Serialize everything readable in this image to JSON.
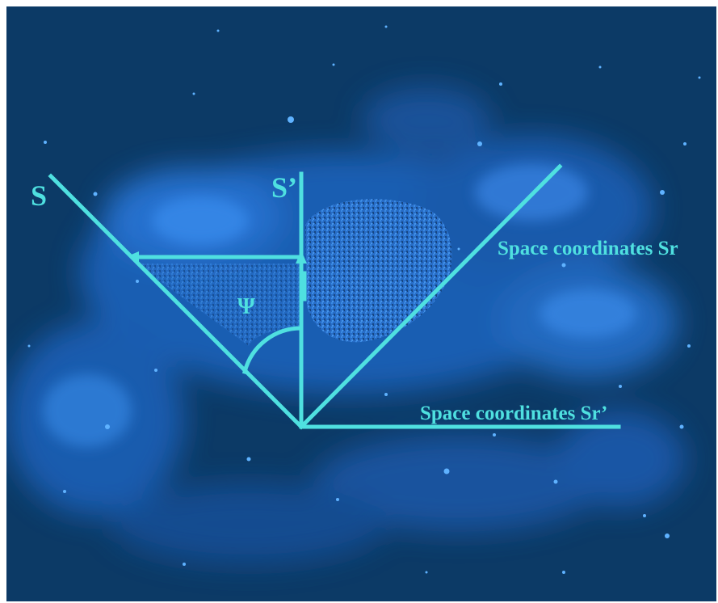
{
  "labels": {
    "axis_s": "S",
    "axis_s_prime": "S’",
    "angle": "Ψ",
    "space_sr": "Space coordinates Sr",
    "space_sr_prime": "Space coordinates Sr’"
  },
  "colors": {
    "background": "#0c3a66",
    "line": "#4fe0e0",
    "nebula": "#1f73d6"
  }
}
